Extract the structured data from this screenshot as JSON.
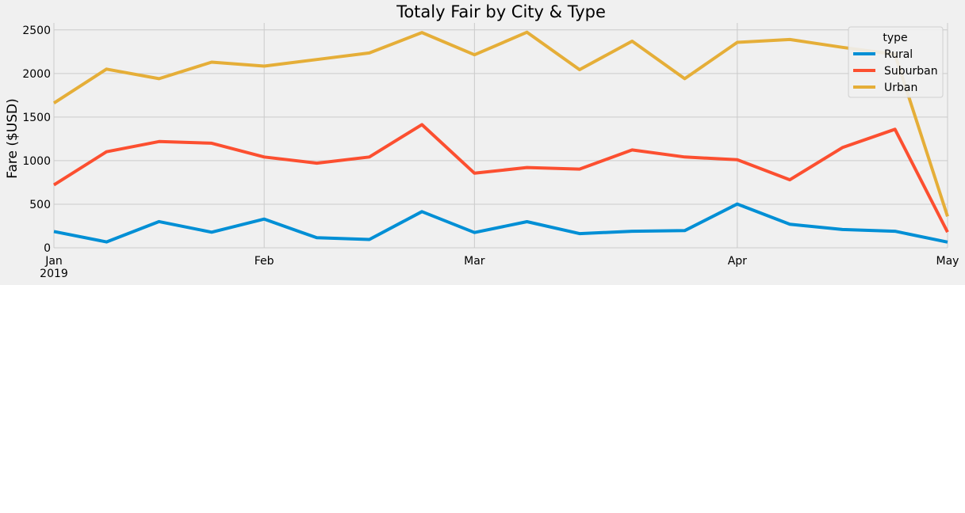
{
  "chart_data": {
    "type": "line",
    "title": "Totaly Fair by City & Type",
    "ylabel": "Fare ($USD)",
    "xlabel": "",
    "xlim": [
      "2019-01-06",
      "2019-05-05"
    ],
    "ylim": [
      0,
      2580
    ],
    "yticks": [
      0,
      500,
      1000,
      1500,
      2000,
      2500
    ],
    "xticks": [
      {
        "date": "2019-01-06",
        "label": "Jan",
        "sublabel": "2019"
      },
      {
        "date": "2019-02-03",
        "label": "Feb",
        "sublabel": ""
      },
      {
        "date": "2019-03-03",
        "label": "Mar",
        "sublabel": ""
      },
      {
        "date": "2019-04-07",
        "label": "Apr",
        "sublabel": ""
      },
      {
        "date": "2019-05-05",
        "label": "May",
        "sublabel": ""
      }
    ],
    "grid": true,
    "legend": {
      "title": "type",
      "position": "top-right"
    },
    "x": [
      "2019-01-06",
      "2019-01-13",
      "2019-01-20",
      "2019-01-27",
      "2019-02-03",
      "2019-02-10",
      "2019-02-17",
      "2019-02-24",
      "2019-03-03",
      "2019-03-10",
      "2019-03-17",
      "2019-03-24",
      "2019-03-31",
      "2019-04-07",
      "2019-04-14",
      "2019-04-21",
      "2019-04-28",
      "2019-05-05"
    ],
    "series": [
      {
        "name": "Rural",
        "color": "#008fd5",
        "values": [
          187,
          67,
          301,
          179,
          330,
          115,
          95,
          415,
          175,
          300,
          163,
          190,
          197,
          502,
          270,
          210,
          190,
          65
        ]
      },
      {
        "name": "Suburban",
        "color": "#fc4f30",
        "values": [
          721,
          1102,
          1219,
          1200,
          1042,
          971,
          1042,
          1414,
          856,
          921,
          903,
          1123,
          1042,
          1010,
          780,
          1150,
          1360,
          180
        ]
      },
      {
        "name": "Urban",
        "color": "#e5ae38",
        "values": [
          1661,
          2050,
          1940,
          2130,
          2085,
          2160,
          2236,
          2470,
          2215,
          2474,
          2044,
          2371,
          1940,
          2357,
          2390,
          2300,
          2220,
          360
        ]
      }
    ]
  }
}
